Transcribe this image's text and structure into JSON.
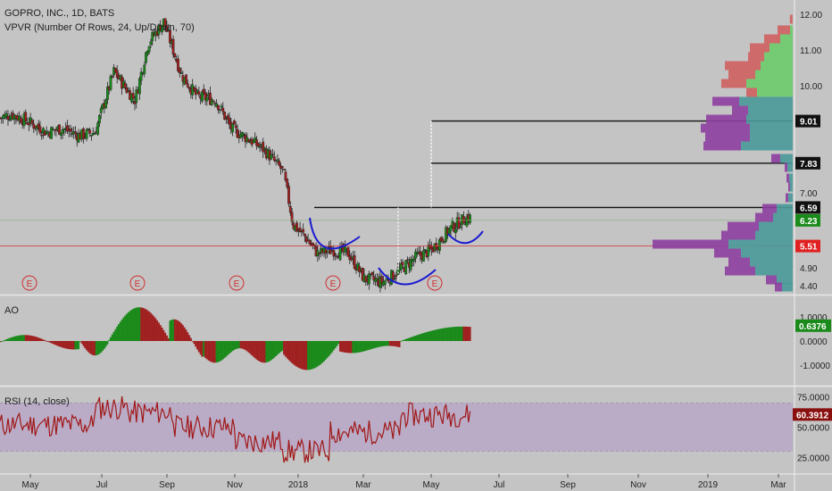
{
  "header": {
    "title": "GOPRO, INC., 1D, BATS",
    "indicator": "VPVR (Number Of Rows, 24, Up/Down, 70)",
    "ao_label": "AO",
    "rsi_label": "RSI (14, close)"
  },
  "colors": {
    "background": "#c4c4c4",
    "up": "#1a8a1a",
    "down": "#a02020",
    "vp_up": "#4a9a9a",
    "vp_down": "#8e3fa0",
    "vp_up_top": "#6ccc6c",
    "vp_down_top": "#d06060",
    "rsi_line": "#a01818",
    "rsi_band": "#b8a6c8",
    "earnings": "#d03030",
    "pattern": "#1a1ad0",
    "current_line": "#d03030",
    "ao_price": "#1a8a1a",
    "rsi_price": "#8a1010"
  },
  "chart_data": [
    {
      "type": "candlestick",
      "title": "GOPRO, INC., 1D, BATS",
      "y_ticks": [
        "12.00",
        "11.00",
        "10.00",
        "9.01",
        "7.83",
        "7.00",
        "6.59",
        "6.23",
        "5.51",
        "4.90",
        "4.40"
      ],
      "price_labels": [
        {
          "value": "9.01",
          "style": "black"
        },
        {
          "value": "7.83",
          "style": "black"
        },
        {
          "value": "6.59",
          "style": "black"
        },
        {
          "value": "6.23",
          "style": "green"
        },
        {
          "value": "5.51",
          "style": "red"
        }
      ],
      "series": [
        {
          "name": "Close",
          "x": [
            "2017-04-20",
            "2017-05-01",
            "2017-05-15",
            "2017-06-01",
            "2017-06-15",
            "2017-07-01",
            "2017-07-15",
            "2017-08-01",
            "2017-08-10",
            "2017-08-20",
            "2017-09-01",
            "2017-09-15",
            "2017-10-01",
            "2017-10-15",
            "2017-11-01",
            "2017-11-15",
            "2017-12-01",
            "2017-12-15",
            "2018-01-01",
            "2018-01-10",
            "2018-01-20",
            "2018-02-01",
            "2018-02-15",
            "2018-03-01",
            "2018-03-15",
            "2018-04-01",
            "2018-04-15",
            "2018-05-01",
            "2018-05-15",
            "2018-06-01",
            "2018-06-15"
          ],
          "values": [
            9.1,
            9.2,
            9.0,
            8.7,
            8.8,
            8.6,
            8.7,
            10.4,
            10.0,
            9.6,
            11.2,
            11.8,
            10.3,
            9.7,
            9.6,
            8.8,
            8.5,
            8.2,
            7.6,
            6.1,
            5.8,
            5.3,
            5.4,
            5.3,
            4.6,
            4.5,
            4.8,
            5.2,
            5.4,
            6.0,
            6.3
          ]
        }
      ],
      "horizontal_levels": [
        9.01,
        7.83,
        6.59,
        5.51
      ],
      "earnings_markers": [
        "E",
        "E",
        "E",
        "E",
        "E"
      ],
      "pattern": "inverse head and shoulders",
      "ylim": [
        4.2,
        12.2
      ]
    },
    {
      "type": "bar",
      "title": "AO",
      "y_ticks": [
        "1.0000",
        "0.0000",
        "-1.0000"
      ],
      "last_value": "0.6376",
      "ylim": [
        -1.8,
        1.8
      ]
    },
    {
      "type": "line",
      "title": "RSI (14, close)",
      "y_ticks": [
        "75.0000",
        "50.0000",
        "25.0000"
      ],
      "last_value": "60.3912",
      "band": [
        30,
        70
      ],
      "ylim": [
        12,
        82
      ]
    }
  ],
  "x_axis": {
    "ticks": [
      "May",
      "Jul",
      "Sep",
      "Nov",
      "2018",
      "Mar",
      "May",
      "Jul",
      "Sep",
      "Nov",
      "2019",
      "Mar"
    ]
  }
}
